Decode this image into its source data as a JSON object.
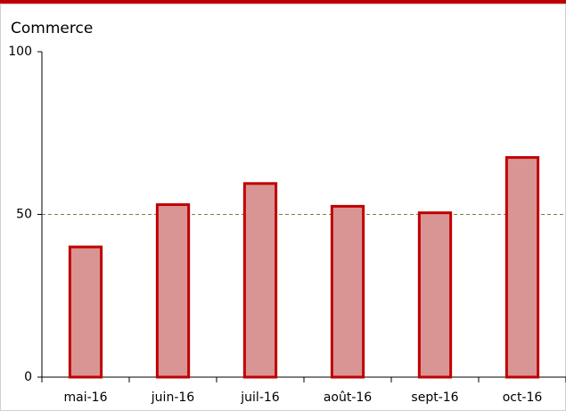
{
  "chart_data": {
    "type": "bar",
    "title": "Commerce",
    "categories": [
      "mai-16",
      "juin-16",
      "juil-16",
      "août-16",
      "sept-16",
      "oct-16"
    ],
    "values": [
      40,
      53,
      59.5,
      52.5,
      50.5,
      67.5
    ],
    "color": "#d99594",
    "edge_color": "#c00000",
    "ylim": [
      0,
      100
    ],
    "yticks": [
      0,
      50,
      100
    ],
    "reference_line": 50,
    "reference_color": "#7f8040"
  }
}
